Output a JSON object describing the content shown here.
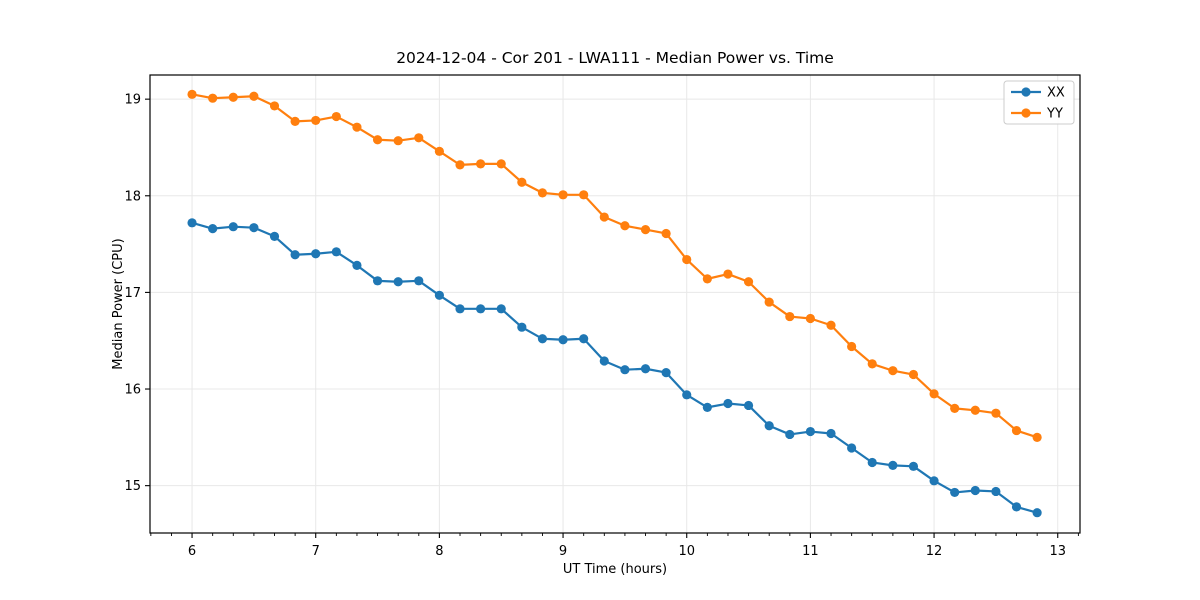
{
  "figure": {
    "background": "#ffffff"
  },
  "chart_data": {
    "type": "line",
    "title": "2024-12-04 - Cor 201 - LWA111 - Median Power vs. Time",
    "xlabel": "UT Time (hours)",
    "ylabel": "Median Power (CPU)",
    "xlim": [
      5.66,
      13.18
    ],
    "ylim": [
      14.51,
      19.25
    ],
    "xticks": [
      6,
      7,
      8,
      9,
      10,
      11,
      12,
      13
    ],
    "xtick_labels": [
      "6",
      "7",
      "8",
      "9",
      "10",
      "11",
      "12",
      "13"
    ],
    "yticks": [
      15,
      16,
      17,
      18,
      19
    ],
    "ytick_labels": [
      "15",
      "16",
      "17",
      "18",
      "19"
    ],
    "x_minor_tick_step": 0.16667,
    "grid": true,
    "grid_color": "#e8e8e8",
    "spine_color": "#000000",
    "legend_position": "upper right",
    "x": [
      6.0,
      6.1667,
      6.3333,
      6.5,
      6.6667,
      6.8333,
      7.0,
      7.1667,
      7.3333,
      7.5,
      7.6667,
      7.8333,
      8.0,
      8.1667,
      8.3333,
      8.5,
      8.6667,
      8.8333,
      9.0,
      9.1667,
      9.3333,
      9.5,
      9.6667,
      9.8333,
      10.0,
      10.1667,
      10.3333,
      10.5,
      10.6667,
      10.8333,
      11.0,
      11.1667,
      11.3333,
      11.5,
      11.6667,
      11.8333,
      12.0,
      12.1667,
      12.3333,
      12.5,
      12.6667,
      12.8333
    ],
    "series": [
      {
        "name": "XX",
        "color": "#1f77b4",
        "values": [
          17.72,
          17.66,
          17.68,
          17.67,
          17.58,
          17.39,
          17.4,
          17.42,
          17.28,
          17.12,
          17.11,
          17.12,
          16.97,
          16.83,
          16.83,
          16.83,
          16.64,
          16.52,
          16.51,
          16.52,
          16.29,
          16.2,
          16.21,
          16.17,
          15.94,
          15.81,
          15.85,
          15.83,
          15.62,
          15.53,
          15.56,
          15.54,
          15.39,
          15.24,
          15.21,
          15.2,
          15.05,
          14.93,
          14.95,
          14.94,
          14.78,
          14.72
        ]
      },
      {
        "name": "YY",
        "color": "#ff7f0e",
        "values": [
          19.05,
          19.01,
          19.02,
          19.03,
          18.93,
          18.77,
          18.78,
          18.82,
          18.71,
          18.58,
          18.57,
          18.6,
          18.46,
          18.32,
          18.33,
          18.33,
          18.14,
          18.03,
          18.01,
          18.01,
          17.78,
          17.69,
          17.65,
          17.61,
          17.34,
          17.14,
          17.19,
          17.11,
          16.9,
          16.75,
          16.73,
          16.66,
          16.44,
          16.26,
          16.19,
          16.15,
          15.95,
          15.8,
          15.78,
          15.75,
          15.57,
          15.5
        ]
      }
    ]
  }
}
